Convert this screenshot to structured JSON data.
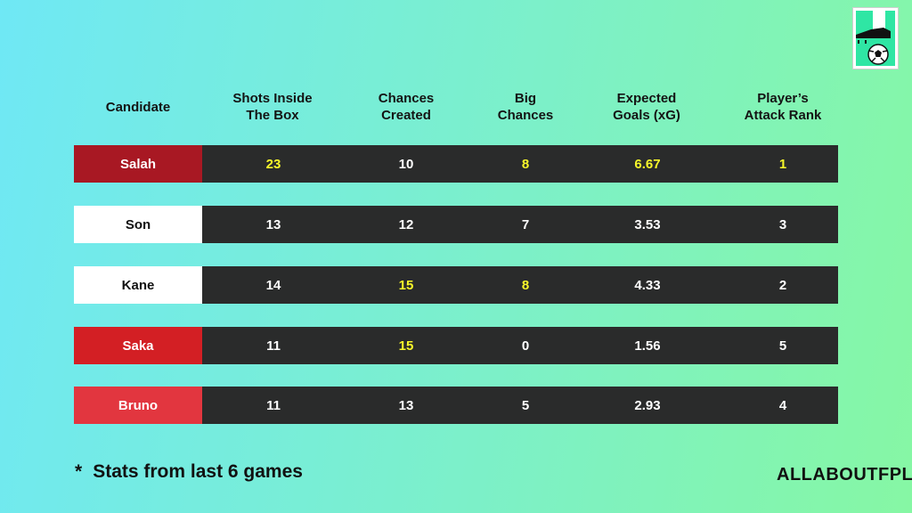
{
  "chart_data": {
    "type": "table",
    "columns": [
      "Candidate",
      "Shots Inside\nThe Box",
      "Chances\nCreated",
      "Big\nChances",
      "Expected\nGoals (xG)",
      "Player’s\nAttack Rank"
    ],
    "rows": [
      {
        "name": "Salah",
        "values": [
          "23",
          "10",
          "8",
          "6.67",
          "1"
        ],
        "highlight": [
          true,
          false,
          true,
          true,
          true
        ],
        "name_bg": "#a81823",
        "name_color": "#ffffff"
      },
      {
        "name": "Son",
        "values": [
          "13",
          "12",
          "7",
          "3.53",
          "3"
        ],
        "highlight": [
          false,
          false,
          false,
          false,
          false
        ],
        "name_bg": "#ffffff",
        "name_color": "#111111"
      },
      {
        "name": "Kane",
        "values": [
          "14",
          "15",
          "8",
          "4.33",
          "2"
        ],
        "highlight": [
          false,
          true,
          true,
          false,
          false
        ],
        "name_bg": "#ffffff",
        "name_color": "#111111"
      },
      {
        "name": "Saka",
        "values": [
          "11",
          "15",
          "0",
          "1.56",
          "5"
        ],
        "highlight": [
          false,
          true,
          false,
          false,
          false
        ],
        "name_bg": "#d31f24",
        "name_color": "#ffffff"
      },
      {
        "name": "Bruno",
        "values": [
          "11",
          "13",
          "5",
          "2.93",
          "4"
        ],
        "highlight": [
          false,
          false,
          false,
          false,
          false
        ],
        "name_bg": "#e2363f",
        "name_color": "#ffffff"
      }
    ]
  },
  "footnote": {
    "star": "*",
    "text": "Stats from last 6 games"
  },
  "brand": "ALLABOUTFPL",
  "logo_icon": "football-boot-ball-icon",
  "colors": {
    "row_bg": "#2a2b2b",
    "value": "#ffffff",
    "highlight": "#f7f72a"
  }
}
